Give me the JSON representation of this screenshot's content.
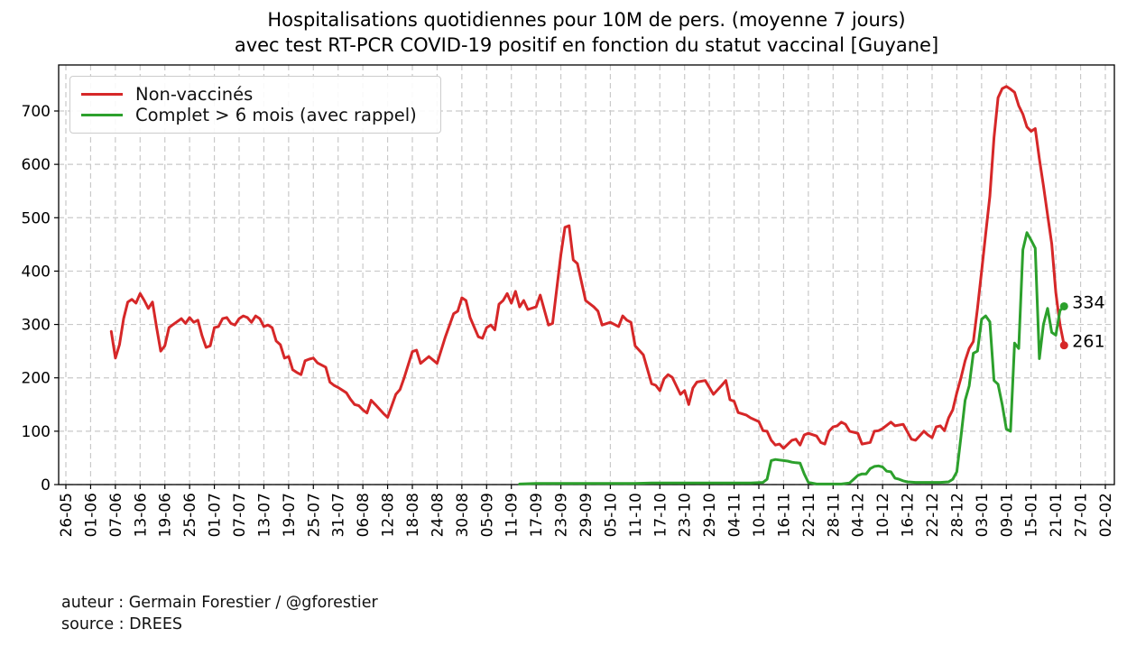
{
  "title": {
    "line1": "Hospitalisations quotidiennes pour 10M de pers. (moyenne 7 jours)",
    "line2": "avec test RT-PCR COVID-19 positif en fonction du statut vaccinal [Guyane]"
  },
  "legend": {
    "items": [
      {
        "label": "Non-vaccinés",
        "color": "#d62728"
      },
      {
        "label": "Complet > 6 mois (avec rappel)",
        "color": "#2ca02c"
      }
    ]
  },
  "footer": {
    "author": "auteur : Germain Forestier / @gforestier",
    "source": "source : DREES"
  },
  "chart_data": {
    "type": "line",
    "title": "Hospitalisations quotidiennes pour 10M de pers. (moyenne 7 jours) avec test RT-PCR COVID-19 positif en fonction du statut vaccinal [Guyane]",
    "xlabel": "",
    "ylabel": "",
    "grid": true,
    "legend_position": "upper left",
    "x_axis": {
      "tick_interval_days": 6,
      "range_days": [
        0,
        252
      ],
      "tick_labels": [
        "26-05",
        "01-06",
        "07-06",
        "13-06",
        "19-06",
        "25-06",
        "01-07",
        "07-07",
        "13-07",
        "19-07",
        "25-07",
        "31-07",
        "06-08",
        "12-08",
        "18-08",
        "24-08",
        "30-08",
        "05-09",
        "11-09",
        "17-09",
        "23-09",
        "29-09",
        "05-10",
        "11-10",
        "17-10",
        "23-10",
        "29-10",
        "04-11",
        "10-11",
        "16-11",
        "22-11",
        "28-11",
        "04-12",
        "10-12",
        "16-12",
        "22-12",
        "28-12",
        "03-01",
        "09-01",
        "15-01",
        "21-01",
        "27-01",
        "02-02"
      ]
    },
    "y_axis": {
      "ticks": [
        0,
        100,
        200,
        300,
        400,
        500,
        600,
        700
      ],
      "ylim": [
        0,
        786
      ]
    },
    "series": [
      {
        "name": "Non-vaccinés",
        "color": "#d62728",
        "end_label": "261",
        "end_value": 261,
        "points": [
          [
            11,
            287
          ],
          [
            12,
            237
          ],
          [
            13,
            262
          ],
          [
            14,
            311
          ],
          [
            15,
            342
          ],
          [
            16,
            347
          ],
          [
            17,
            340
          ],
          [
            18,
            358
          ],
          [
            19,
            345
          ],
          [
            20,
            330
          ],
          [
            21,
            342
          ],
          [
            22,
            294
          ],
          [
            23,
            250
          ],
          [
            24,
            260
          ],
          [
            25,
            294
          ],
          [
            26,
            300
          ],
          [
            28,
            311
          ],
          [
            29,
            302
          ],
          [
            30,
            313
          ],
          [
            31,
            304
          ],
          [
            32,
            308
          ],
          [
            33,
            279
          ],
          [
            34,
            257
          ],
          [
            35,
            260
          ],
          [
            36,
            294
          ],
          [
            37,
            296
          ],
          [
            38,
            311
          ],
          [
            39,
            313
          ],
          [
            40,
            302
          ],
          [
            41,
            299
          ],
          [
            42,
            311
          ],
          [
            43,
            316
          ],
          [
            44,
            313
          ],
          [
            45,
            304
          ],
          [
            46,
            316
          ],
          [
            47,
            311
          ],
          [
            48,
            296
          ],
          [
            49,
            299
          ],
          [
            50,
            294
          ],
          [
            51,
            269
          ],
          [
            52,
            262
          ],
          [
            53,
            237
          ],
          [
            54,
            240
          ],
          [
            55,
            215
          ],
          [
            56,
            210
          ],
          [
            57,
            206
          ],
          [
            58,
            232
          ],
          [
            59,
            235
          ],
          [
            60,
            237
          ],
          [
            61,
            228
          ],
          [
            63,
            220
          ],
          [
            64,
            192
          ],
          [
            65,
            186
          ],
          [
            66,
            182
          ],
          [
            68,
            172
          ],
          [
            69,
            160
          ],
          [
            70,
            150
          ],
          [
            71,
            148
          ],
          [
            72,
            140
          ],
          [
            73,
            134
          ],
          [
            74,
            158
          ],
          [
            75,
            150
          ],
          [
            77,
            133
          ],
          [
            78,
            126
          ],
          [
            80,
            169
          ],
          [
            81,
            178
          ],
          [
            82,
            200
          ],
          [
            84,
            249
          ],
          [
            85,
            252
          ],
          [
            86,
            227
          ],
          [
            88,
            240
          ],
          [
            90,
            227
          ],
          [
            92,
            277
          ],
          [
            94,
            320
          ],
          [
            95,
            325
          ],
          [
            96,
            350
          ],
          [
            97,
            345
          ],
          [
            98,
            313
          ],
          [
            100,
            277
          ],
          [
            101,
            274
          ],
          [
            102,
            294
          ],
          [
            103,
            299
          ],
          [
            104,
            290
          ],
          [
            105,
            338
          ],
          [
            106,
            345
          ],
          [
            107,
            358
          ],
          [
            108,
            340
          ],
          [
            109,
            362
          ],
          [
            110,
            333
          ],
          [
            111,
            345
          ],
          [
            112,
            328
          ],
          [
            114,
            333
          ],
          [
            115,
            355
          ],
          [
            117,
            299
          ],
          [
            118,
            302
          ],
          [
            120,
            431
          ],
          [
            121,
            482
          ],
          [
            122,
            485
          ],
          [
            123,
            421
          ],
          [
            124,
            414
          ],
          [
            126,
            345
          ],
          [
            128,
            333
          ],
          [
            129,
            325
          ],
          [
            130,
            299
          ],
          [
            132,
            304
          ],
          [
            134,
            296
          ],
          [
            135,
            316
          ],
          [
            136,
            308
          ],
          [
            137,
            304
          ],
          [
            138,
            260
          ],
          [
            140,
            243
          ],
          [
            142,
            189
          ],
          [
            143,
            186
          ],
          [
            144,
            176
          ],
          [
            145,
            198
          ],
          [
            146,
            206
          ],
          [
            147,
            201
          ],
          [
            149,
            169
          ],
          [
            150,
            176
          ],
          [
            151,
            150
          ],
          [
            152,
            181
          ],
          [
            153,
            192
          ],
          [
            155,
            195
          ],
          [
            157,
            169
          ],
          [
            159,
            186
          ],
          [
            160,
            195
          ],
          [
            161,
            159
          ],
          [
            162,
            156
          ],
          [
            163,
            135
          ],
          [
            165,
            130
          ],
          [
            166,
            125
          ],
          [
            168,
            118
          ],
          [
            169,
            101
          ],
          [
            170,
            100
          ],
          [
            171,
            83
          ],
          [
            172,
            74
          ],
          [
            173,
            76
          ],
          [
            174,
            68
          ],
          [
            176,
            83
          ],
          [
            177,
            85
          ],
          [
            178,
            74
          ],
          [
            179,
            93
          ],
          [
            180,
            96
          ],
          [
            182,
            91
          ],
          [
            183,
            79
          ],
          [
            184,
            76
          ],
          [
            185,
            100
          ],
          [
            186,
            108
          ],
          [
            187,
            110
          ],
          [
            188,
            117
          ],
          [
            189,
            113
          ],
          [
            190,
            100
          ],
          [
            192,
            96
          ],
          [
            193,
            76
          ],
          [
            195,
            79
          ],
          [
            196,
            100
          ],
          [
            197,
            101
          ],
          [
            198,
            105
          ],
          [
            200,
            117
          ],
          [
            201,
            110
          ],
          [
            203,
            113
          ],
          [
            205,
            85
          ],
          [
            206,
            83
          ],
          [
            208,
            100
          ],
          [
            209,
            93
          ],
          [
            210,
            88
          ],
          [
            211,
            108
          ],
          [
            212,
            110
          ],
          [
            213,
            101
          ],
          [
            214,
            125
          ],
          [
            215,
            140
          ],
          [
            216,
            172
          ],
          [
            217,
            200
          ],
          [
            218,
            232
          ],
          [
            219,
            255
          ],
          [
            220,
            268
          ],
          [
            221,
            330
          ],
          [
            222,
            400
          ],
          [
            223,
            470
          ],
          [
            224,
            540
          ],
          [
            225,
            650
          ],
          [
            226,
            725
          ],
          [
            227,
            742
          ],
          [
            228,
            746
          ],
          [
            229,
            741
          ],
          [
            230,
            735
          ],
          [
            231,
            710
          ],
          [
            232,
            694
          ],
          [
            233,
            670
          ],
          [
            234,
            662
          ],
          [
            235,
            667
          ],
          [
            236,
            610
          ],
          [
            237,
            560
          ],
          [
            238,
            505
          ],
          [
            239,
            451
          ],
          [
            240,
            360
          ],
          [
            241,
            300
          ],
          [
            242,
            261
          ]
        ]
      },
      {
        "name": "Complet > 6 mois (avec rappel)",
        "color": "#2ca02c",
        "end_label": "334",
        "end_value": 334,
        "points": [
          [
            110,
            1
          ],
          [
            114,
            2
          ],
          [
            118,
            2
          ],
          [
            122,
            2
          ],
          [
            126,
            2
          ],
          [
            130,
            2
          ],
          [
            134,
            2
          ],
          [
            138,
            2
          ],
          [
            142,
            3
          ],
          [
            146,
            3
          ],
          [
            150,
            3
          ],
          [
            154,
            3
          ],
          [
            158,
            3
          ],
          [
            162,
            3
          ],
          [
            166,
            3
          ],
          [
            169,
            4
          ],
          [
            170,
            10
          ],
          [
            171,
            45
          ],
          [
            172,
            47
          ],
          [
            173,
            46
          ],
          [
            174,
            45
          ],
          [
            175,
            44
          ],
          [
            176,
            42
          ],
          [
            177,
            41
          ],
          [
            178,
            40
          ],
          [
            179,
            20
          ],
          [
            180,
            4
          ],
          [
            182,
            1
          ],
          [
            184,
            1
          ],
          [
            186,
            1
          ],
          [
            188,
            1
          ],
          [
            190,
            3
          ],
          [
            191,
            10
          ],
          [
            192,
            17
          ],
          [
            193,
            20
          ],
          [
            194,
            20
          ],
          [
            195,
            30
          ],
          [
            196,
            34
          ],
          [
            197,
            35
          ],
          [
            198,
            33
          ],
          [
            199,
            25
          ],
          [
            200,
            24
          ],
          [
            201,
            12
          ],
          [
            202,
            10
          ],
          [
            203,
            7
          ],
          [
            204,
            5
          ],
          [
            206,
            4
          ],
          [
            208,
            4
          ],
          [
            210,
            4
          ],
          [
            212,
            4
          ],
          [
            214,
            5
          ],
          [
            215,
            10
          ],
          [
            216,
            24
          ],
          [
            217,
            90
          ],
          [
            218,
            158
          ],
          [
            219,
            185
          ],
          [
            220,
            246
          ],
          [
            221,
            250
          ],
          [
            222,
            310
          ],
          [
            223,
            316
          ],
          [
            224,
            305
          ],
          [
            225,
            195
          ],
          [
            226,
            188
          ],
          [
            227,
            150
          ],
          [
            228,
            104
          ],
          [
            229,
            100
          ],
          [
            230,
            265
          ],
          [
            231,
            255
          ],
          [
            232,
            440
          ],
          [
            233,
            472
          ],
          [
            234,
            458
          ],
          [
            235,
            443
          ],
          [
            236,
            236
          ],
          [
            237,
            300
          ],
          [
            238,
            330
          ],
          [
            239,
            285
          ],
          [
            240,
            280
          ],
          [
            241,
            326
          ],
          [
            242,
            334
          ]
        ]
      }
    ]
  }
}
